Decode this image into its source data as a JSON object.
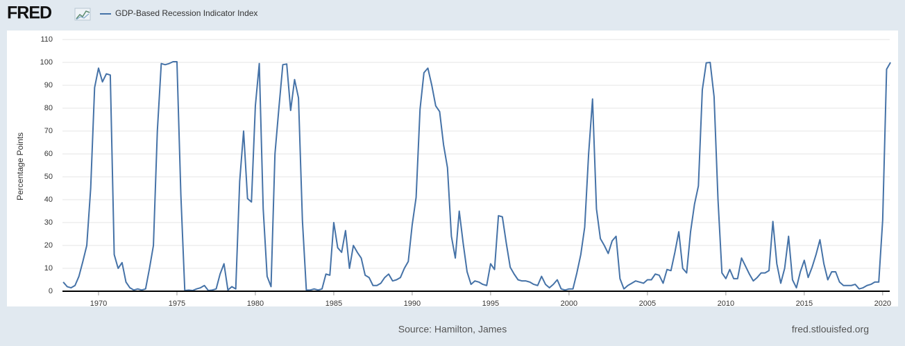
{
  "logo": "FRED",
  "chart_data": {
    "type": "line",
    "y_label": "Percentage Points",
    "source": "Source: Hamilton, James",
    "site": "fred.stlouisfed.org",
    "xlim": [
      1967.7,
      2020.45
    ],
    "xticks": [
      1970,
      1975,
      1980,
      1985,
      1990,
      1995,
      2000,
      2005,
      2010,
      2015,
      2020
    ],
    "ylim": [
      0,
      110
    ],
    "yticks": [
      0,
      10,
      20,
      30,
      40,
      50,
      60,
      70,
      80,
      90,
      100,
      110
    ],
    "grid": true,
    "x": [
      1967.75,
      1968,
      1968.25,
      1968.5,
      1968.75,
      1969,
      1969.25,
      1969.5,
      1969.75,
      1970,
      1970.25,
      1970.5,
      1970.75,
      1971,
      1971.25,
      1971.5,
      1971.75,
      1972,
      1972.25,
      1972.5,
      1972.75,
      1973,
      1973.25,
      1973.5,
      1973.75,
      1974,
      1974.25,
      1974.5,
      1974.75,
      1975,
      1975.25,
      1975.5,
      1975.75,
      1976,
      1976.25,
      1976.5,
      1976.75,
      1977,
      1977.25,
      1977.5,
      1977.75,
      1978,
      1978.25,
      1978.5,
      1978.75,
      1979,
      1979.25,
      1979.5,
      1979.75,
      1980,
      1980.25,
      1980.5,
      1980.75,
      1981,
      1981.25,
      1981.5,
      1981.75,
      1982,
      1982.25,
      1982.5,
      1982.75,
      1983,
      1983.25,
      1983.5,
      1983.75,
      1984,
      1984.25,
      1984.5,
      1984.75,
      1985,
      1985.25,
      1985.5,
      1985.75,
      1986,
      1986.25,
      1986.5,
      1986.75,
      1987,
      1987.25,
      1987.5,
      1987.75,
      1988,
      1988.25,
      1988.5,
      1988.75,
      1989,
      1989.25,
      1989.5,
      1989.75,
      1990,
      1990.25,
      1990.5,
      1990.75,
      1991,
      1991.25,
      1991.5,
      1991.75,
      1992,
      1992.25,
      1992.5,
      1992.75,
      1993,
      1993.25,
      1993.5,
      1993.75,
      1994,
      1994.25,
      1994.5,
      1994.75,
      1995,
      1995.25,
      1995.5,
      1995.75,
      1996,
      1996.25,
      1996.5,
      1996.75,
      1997,
      1997.25,
      1997.5,
      1997.75,
      1998,
      1998.25,
      1998.5,
      1998.75,
      1999,
      1999.25,
      1999.5,
      1999.75,
      2000,
      2000.25,
      2000.5,
      2000.75,
      2001,
      2001.25,
      2001.5,
      2001.75,
      2002,
      2002.25,
      2002.5,
      2002.75,
      2003,
      2003.25,
      2003.5,
      2003.75,
      2004,
      2004.25,
      2004.5,
      2004.75,
      2005,
      2005.25,
      2005.5,
      2005.75,
      2006,
      2006.25,
      2006.5,
      2006.75,
      2007,
      2007.25,
      2007.5,
      2007.75,
      2008,
      2008.25,
      2008.5,
      2008.75,
      2009,
      2009.25,
      2009.5,
      2009.75,
      2010,
      2010.25,
      2010.5,
      2010.75,
      2011,
      2011.25,
      2011.5,
      2011.75,
      2012,
      2012.25,
      2012.5,
      2012.75,
      2013,
      2013.25,
      2013.5,
      2013.75,
      2014,
      2014.25,
      2014.5,
      2014.75,
      2015,
      2015.25,
      2015.5,
      2015.75,
      2016,
      2016.25,
      2016.5,
      2016.75,
      2017,
      2017.25,
      2017.5,
      2017.75,
      2018,
      2018.25,
      2018.5,
      2018.75,
      2019,
      2019.25,
      2019.5,
      2019.75,
      2020,
      2020.25,
      2020.5
    ],
    "series": [
      {
        "name": "GDP-Based Recession Indicator Index",
        "color": "#4572a7",
        "values": [
          4,
          2,
          1.5,
          2.5,
          6.5,
          13,
          20,
          45,
          89,
          97.5,
          91.5,
          95,
          94.5,
          16,
          10,
          12.5,
          4,
          1.5,
          0.5,
          1,
          0.5,
          1,
          10,
          20,
          70,
          99.5,
          99,
          99.5,
          100.3,
          100.3,
          42,
          0.3,
          0.5,
          0.3,
          1,
          1.5,
          2.5,
          0.3,
          0.5,
          1,
          7.5,
          12,
          0.5,
          2,
          1,
          48,
          70,
          40.5,
          39,
          81,
          99.5,
          36,
          6.5,
          2,
          60,
          80,
          99,
          99.3,
          79,
          92.5,
          84.5,
          31,
          0.5,
          0.5,
          1,
          0.5,
          1,
          7.5,
          7,
          30,
          19,
          17,
          26.5,
          10,
          20,
          17,
          14.5,
          7,
          6,
          2.5,
          2.5,
          3.5,
          6,
          7.5,
          4.5,
          5,
          6,
          10,
          13,
          29,
          41,
          79.5,
          95.5,
          97.5,
          90,
          81,
          78.5,
          64,
          54,
          24,
          14.5,
          35,
          21,
          8.5,
          3,
          4.5,
          4,
          3,
          2.5,
          12,
          9.5,
          33,
          32.5,
          21,
          10.5,
          7.5,
          5,
          4.5,
          4.5,
          4,
          3,
          2.5,
          6.5,
          3,
          1.5,
          3,
          5,
          1,
          0.5,
          1,
          1,
          8,
          16,
          28,
          60,
          84,
          36,
          23,
          20,
          16.5,
          22,
          24,
          5.5,
          1,
          2.5,
          3.5,
          4.5,
          4,
          3.5,
          5,
          5,
          7.5,
          7,
          3.5,
          9.5,
          9,
          17,
          26,
          10,
          8,
          26,
          38,
          46,
          88,
          99.8,
          100,
          85,
          40,
          8,
          5.5,
          9.5,
          5.5,
          5.5,
          14.5,
          11,
          7.5,
          4.5,
          6,
          8,
          8,
          9,
          30.5,
          12,
          3.5,
          10,
          24,
          5,
          1.5,
          8.5,
          13.5,
          6,
          10.5,
          16,
          22.5,
          12,
          5,
          8.5,
          8.5,
          4,
          2.5,
          2.5,
          2.5,
          3,
          1,
          1.5,
          2.5,
          3,
          4,
          4,
          31,
          97,
          100
        ]
      }
    ]
  }
}
